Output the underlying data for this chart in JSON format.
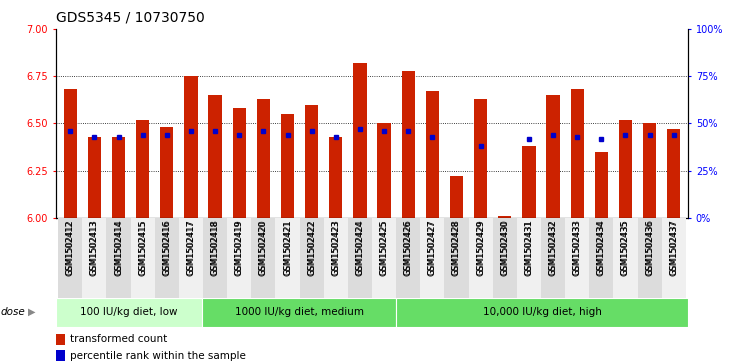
{
  "title": "GDS5345 / 10730750",
  "samples": [
    "GSM1502412",
    "GSM1502413",
    "GSM1502414",
    "GSM1502415",
    "GSM1502416",
    "GSM1502417",
    "GSM1502418",
    "GSM1502419",
    "GSM1502420",
    "GSM1502421",
    "GSM1502422",
    "GSM1502423",
    "GSM1502424",
    "GSM1502425",
    "GSM1502426",
    "GSM1502427",
    "GSM1502428",
    "GSM1502429",
    "GSM1502430",
    "GSM1502431",
    "GSM1502432",
    "GSM1502433",
    "GSM1502434",
    "GSM1502435",
    "GSM1502436",
    "GSM1502437"
  ],
  "bar_values": [
    6.68,
    6.43,
    6.43,
    6.52,
    6.48,
    6.75,
    6.65,
    6.58,
    6.63,
    6.55,
    6.6,
    6.43,
    6.82,
    6.5,
    6.78,
    6.67,
    6.22,
    6.63,
    6.01,
    6.38,
    6.65,
    6.68,
    6.35,
    6.52,
    6.5,
    6.47
  ],
  "blue_values": [
    6.46,
    6.43,
    6.43,
    6.44,
    6.44,
    6.46,
    6.46,
    6.44,
    6.46,
    6.44,
    6.46,
    6.43,
    6.47,
    6.46,
    6.46,
    6.43,
    null,
    6.38,
    null,
    6.42,
    6.44,
    6.43,
    6.42,
    6.44,
    6.44,
    6.44
  ],
  "groups": [
    {
      "label": "100 IU/kg diet, low",
      "start": 0,
      "end": 6,
      "color": "#CCFFCC"
    },
    {
      "label": "1000 IU/kg diet, medium",
      "start": 6,
      "end": 14,
      "color": "#66DD66"
    },
    {
      "label": "10,000 IU/kg diet, high",
      "start": 14,
      "end": 26,
      "color": "#66DD66"
    }
  ],
  "ylim": [
    6.0,
    7.0
  ],
  "y2lim": [
    0,
    100
  ],
  "yticks": [
    6.0,
    6.25,
    6.5,
    6.75,
    7.0
  ],
  "y2ticks": [
    0,
    25,
    50,
    75,
    100
  ],
  "bar_color": "#CC2200",
  "blue_color": "#0000CC",
  "title_fontsize": 10,
  "tick_fontsize": 7,
  "label_fontsize": 8
}
